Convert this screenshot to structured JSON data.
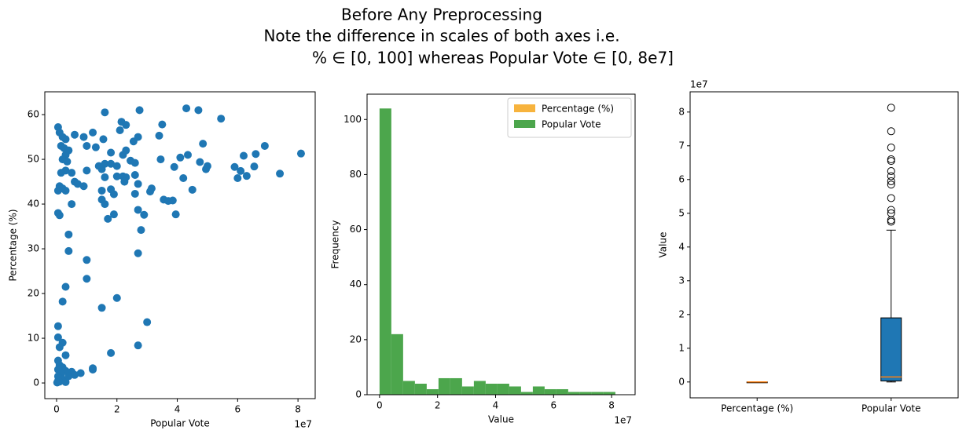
{
  "title_lines": [
    "Before Any Preprocessing",
    "Note the difference in scales of both axes i.e.",
    "% ∈ [0, 100] whereas Popular Vote ∈ [0, 8e7]"
  ],
  "chart_data": [
    {
      "type": "scatter",
      "xlabel": "Popular Vote",
      "ylabel": "Percentage (%)",
      "x_offset_label": "1e7",
      "color": "#1f77b4",
      "xlim": [
        -0.39,
        8.57
      ],
      "xticks": [
        0,
        2,
        4,
        6,
        8
      ],
      "ylim": [
        -3.5,
        65.1
      ],
      "yticks": [
        0,
        10,
        20,
        30,
        40,
        50,
        60
      ],
      "x": [
        0.05,
        0.1,
        0.2,
        0.3,
        0.15,
        0.25,
        0.4,
        0.3,
        0.2,
        0.35,
        0.3,
        0.15,
        0.5,
        0.6,
        0.7,
        0.1,
        0.2,
        0.05,
        0.3,
        0.9,
        0.5,
        0.05,
        0.1,
        0.4,
        0.4,
        0.3,
        0.2,
        0.05,
        0.05,
        0.2,
        0.1,
        0.3,
        0.05,
        0.1,
        0.2,
        0.05,
        0.3,
        0.5,
        0.15,
        0.05,
        0.1,
        0.2,
        0.05,
        0.1,
        0.02,
        0.3,
        0.4,
        0.6,
        0.8,
        1.2,
        0.9,
        0.6,
        1.0,
        1.3,
        1.0,
        1.5,
        1.4,
        1.6,
        1.8,
        2.0,
        1.2,
        1.5,
        1.8,
        1.9,
        1.6,
        2.0,
        2.3,
        1.8,
        2.2,
        2.3,
        2.1,
        1.9,
        2.6,
        2.6,
        2.8,
        2.7,
        1.0,
        1.0,
        1.2,
        1.5,
        1.8,
        2.7,
        3.0,
        1.5,
        1.6,
        1.7,
        1.55,
        1.6,
        2.0,
        2.15,
        2.3,
        2.2,
        2.25,
        2.45,
        2.55,
        2.6,
        2.7,
        2.7,
        2.7,
        2.75,
        2.9,
        3.1,
        3.15,
        3.4,
        3.45,
        3.5,
        3.55,
        3.7,
        3.85,
        3.9,
        3.95,
        4.1,
        4.2,
        4.3,
        4.35,
        4.5,
        4.7,
        4.75,
        4.85,
        4.95,
        5.0,
        5.45,
        5.9,
        6.0,
        6.1,
        6.2,
        6.3,
        6.55,
        6.6,
        6.9,
        7.4,
        8.1
      ],
      "y": [
        57.2,
        56,
        55,
        54.5,
        53,
        52.5,
        52,
        51,
        50,
        49.5,
        47.5,
        47,
        47,
        45,
        44.5,
        44,
        43.5,
        43,
        43,
        44,
        40,
        38,
        37.5,
        33.2,
        29.5,
        21.5,
        18.2,
        12.7,
        10.2,
        9,
        8,
        6.2,
        5,
        4,
        3.5,
        3,
        2.7,
        2.5,
        2,
        1.5,
        1,
        0.8,
        0.5,
        0.3,
        0.1,
        0.2,
        1.5,
        1.8,
        2.2,
        3,
        55,
        55.5,
        53,
        52.7,
        47.5,
        47.8,
        48.5,
        49,
        49,
        48.5,
        56,
        43,
        43.3,
        42.2,
        46,
        46.2,
        46,
        51.5,
        51,
        52,
        56.5,
        37.7,
        49.2,
        46.5,
        34.2,
        29,
        27.5,
        23.3,
        3.3,
        16.8,
        6.7,
        8.4,
        13.6,
        41,
        40,
        36.7,
        54.5,
        60.5,
        19,
        58.4,
        57.7,
        46.2,
        45,
        49.7,
        54,
        42.3,
        55,
        44.5,
        38.7,
        61,
        37.6,
        42.8,
        43.5,
        55.3,
        50,
        57.8,
        41,
        40.7,
        40.8,
        48.3,
        37.7,
        50.4,
        45.8,
        61.4,
        51,
        43.2,
        61,
        49.4,
        53.5,
        47.8,
        48.5,
        59.1,
        48.3,
        45.8,
        47.4,
        50.8,
        46.3,
        48.4,
        51.2,
        53,
        46.8,
        51.3
      ]
    },
    {
      "type": "histogram",
      "xlabel": "Value",
      "ylabel": "Frequency",
      "x_offset_label": "1e7",
      "legend": "upper right",
      "xlim": [
        -0.43,
        8.81
      ],
      "xticks": [
        0,
        2,
        4,
        6,
        8
      ],
      "ylim": [
        0,
        109.2
      ],
      "yticks": [
        0,
        20,
        40,
        60,
        80,
        100
      ],
      "bins": [
        0,
        0.4065,
        0.813,
        1.2195,
        1.626,
        2.0325,
        2.439,
        2.8455,
        3.252,
        3.6585,
        4.065,
        4.4715,
        4.878,
        5.2845,
        5.691,
        6.0975,
        6.504,
        6.9105,
        7.317,
        7.7235,
        8.13
      ],
      "series": [
        {
          "name": "Percentage (%)",
          "color": "#f7b33d"
        },
        {
          "name": "Popular Vote",
          "color": "#4ca64c",
          "values": [
            104,
            22,
            5,
            4,
            2,
            6,
            6,
            3,
            5,
            4,
            4,
            3,
            1,
            3,
            2,
            2,
            1,
            1,
            1,
            1
          ]
        }
      ]
    },
    {
      "type": "box",
      "ylabel": "Value",
      "y_offset_label": "1e7",
      "ylim": [
        -0.47,
        8.6
      ],
      "yticks": [
        0,
        1,
        2,
        3,
        4,
        5,
        6,
        7,
        8
      ],
      "categories": [
        "Percentage (%)",
        "Popular Vote"
      ],
      "colors": [
        "#f7b33d",
        "#1f77b4"
      ],
      "median_color": "#ff7f0e",
      "boxes": [
        {
          "min": 0,
          "q1": 1.5e-06,
          "median": 4.3e-06,
          "q3": 4.9e-06,
          "max": 6.1e-06,
          "outliers": []
        },
        {
          "min": 0,
          "q1": 0.03,
          "median": 0.15,
          "q3": 1.9,
          "max": 4.5,
          "outliers": [
            8.13,
            7.43,
            6.95,
            6.6,
            6.55,
            6.25,
            6.1,
            5.95,
            5.85,
            5.45,
            5.1,
            5.0,
            4.8,
            4.75
          ]
        }
      ]
    }
  ]
}
